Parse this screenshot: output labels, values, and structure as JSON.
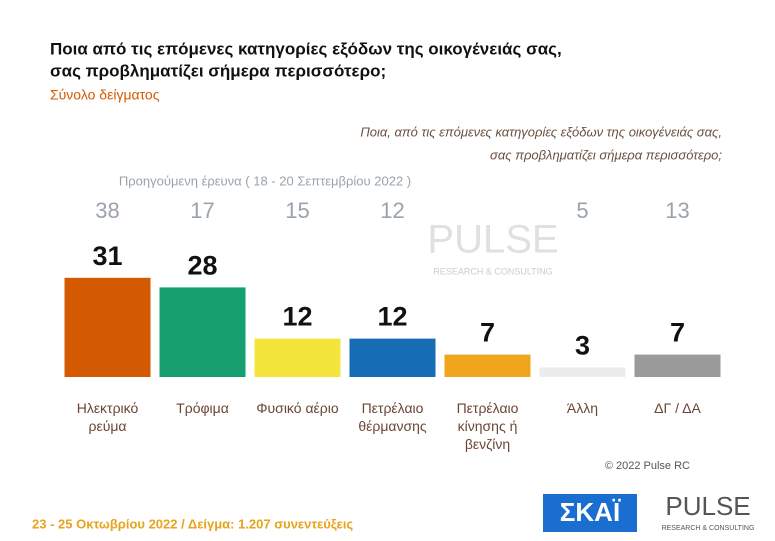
{
  "chart_data": {
    "type": "bar",
    "title": [
      "Ποια από τις επόμενες κατηγορίες εξόδων της οικογένειάς σας,",
      "σας προβληματίζει σήμερα περισσότερο;"
    ],
    "subtitle": "Σύνολο δείγματος",
    "question": [
      "Ποια, από τις επόμενες κατηγορίες εξόδων της οικογένειάς σας,",
      "σας προβληματίζει σήμερα περισσότερο;"
    ],
    "previous_label": "Προηγούμενη έρευνα ( 18 - 20 Σεπτεμβρίου 2022 )",
    "categories": [
      "Ηλεκτρικό ρεύμα",
      "Τρόφιμα",
      "Φυσικό αέριο",
      "Πετρέλαιο θέρμανσης",
      "Πετρέλαιο κίνησης ή βενζίνη",
      "Άλλη",
      "ΔΓ / ΔΑ"
    ],
    "values": [
      31,
      28,
      12,
      12,
      7,
      3,
      7
    ],
    "previous_values": [
      38,
      17,
      15,
      12,
      null,
      5,
      13
    ],
    "colors": [
      "#d35a00",
      "#16a06f",
      "#f3e53c",
      "#166db5",
      "#f0a51c",
      "#ececec",
      "#9a9a9a"
    ],
    "ylim": [
      0,
      35
    ],
    "copyright": "© 2022 Pulse RC",
    "footer": "23 - 25 Οκτωβρίου 2022 / Δείγμα: 1.207 συνεντεύξεις",
    "logos": {
      "skai": "ΣΚΑΪ",
      "pulse": "PULSE",
      "pulse_tagline": "RESEARCH & CONSULTING"
    }
  }
}
